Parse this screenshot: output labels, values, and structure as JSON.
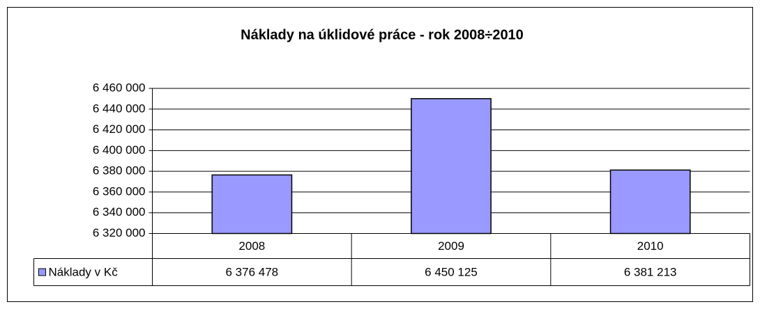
{
  "chart_data": {
    "type": "bar",
    "title": "Náklady na úklidové práce - rok 2008÷2010",
    "categories": [
      "2008",
      "2009",
      "2010"
    ],
    "series": [
      {
        "name": "Náklady v Kč",
        "color": "#9999ff",
        "values": [
          6376478,
          6450125,
          6381213
        ],
        "value_labels": [
          "6 376 478",
          "6 450 125",
          "6 381 213"
        ]
      }
    ],
    "ylim": [
      6320000,
      6460000
    ],
    "yticks": [
      {
        "value": 6320000,
        "label": "6 320 000"
      },
      {
        "value": 6340000,
        "label": "6 340 000"
      },
      {
        "value": 6360000,
        "label": "6 360 000"
      },
      {
        "value": 6380000,
        "label": "6 380 000"
      },
      {
        "value": 6400000,
        "label": "6 400 000"
      },
      {
        "value": 6420000,
        "label": "6 420 000"
      },
      {
        "value": 6440000,
        "label": "6 440 000"
      },
      {
        "value": 6460000,
        "label": "6 460 000"
      }
    ],
    "grid": true,
    "data_table": true
  }
}
